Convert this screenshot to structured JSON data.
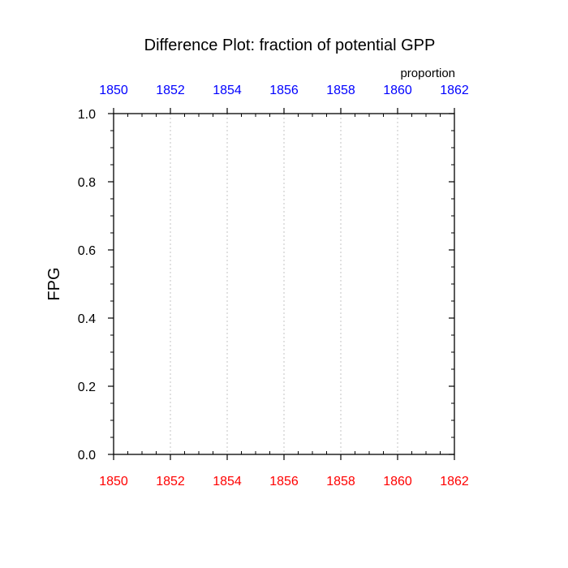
{
  "chart_data": {
    "type": "line",
    "title": "Difference Plot: fraction of potential GPP",
    "units_label": "proportion",
    "ylabel": "FPG",
    "xlabel": "",
    "xlim": [
      1850,
      1862
    ],
    "ylim": [
      0.0,
      1.0
    ],
    "x_ticks": [
      1850,
      1852,
      1854,
      1856,
      1858,
      1860,
      1862
    ],
    "x_tick_labels_bottom": [
      "1850",
      "1852",
      "1854",
      "1856",
      "1858",
      "1860",
      "1862"
    ],
    "x_tick_labels_top": [
      "1850",
      "1852",
      "1854",
      "1856",
      "1858",
      "1860",
      "1862"
    ],
    "y_ticks": [
      0.0,
      0.2,
      0.4,
      0.6,
      0.8,
      1.0
    ],
    "y_tick_labels": [
      "0.0",
      "0.2",
      "0.4",
      "0.6",
      "0.8",
      "1.0"
    ],
    "x_minor_step": 0.5,
    "y_minor_step": 0.05,
    "vertical_gridlines": true,
    "grid_style": "dotted",
    "series": [],
    "colors": {
      "bottom_tick_labels": "#ff0000",
      "top_tick_labels": "#0000ff",
      "axes": "#000000",
      "grid": "#c8c8c8",
      "text": "#000000"
    }
  }
}
